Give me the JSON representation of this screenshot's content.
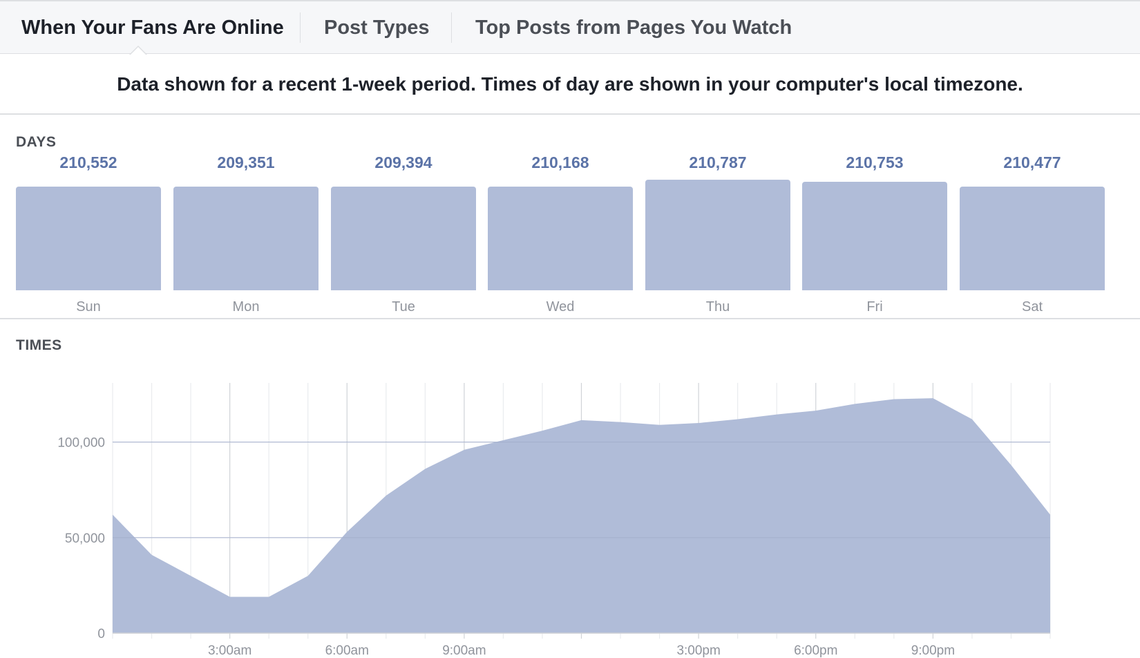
{
  "tabs": [
    {
      "label": "When Your Fans Are Online",
      "active": true
    },
    {
      "label": "Post Types",
      "active": false
    },
    {
      "label": "Top Posts from Pages You Watch",
      "active": false
    }
  ],
  "notice": "Data shown for a recent 1-week period. Times of day are shown in your computer's local timezone.",
  "days_section": {
    "label": "DAYS",
    "days": [
      {
        "name": "Sun",
        "value": "210,552"
      },
      {
        "name": "Mon",
        "value": "209,351"
      },
      {
        "name": "Tue",
        "value": "209,394"
      },
      {
        "name": "Wed",
        "value": "210,168"
      },
      {
        "name": "Thu",
        "value": "210,787"
      },
      {
        "name": "Fri",
        "value": "210,753"
      },
      {
        "name": "Sat",
        "value": "210,477"
      }
    ]
  },
  "times_section": {
    "label": "TIMES"
  },
  "colors": {
    "bar_fill": "#b0bcd8",
    "value_text": "#5b73a7",
    "axis_text": "#90949c"
  },
  "chart_data": [
    {
      "type": "bar",
      "categories": [
        "Sun",
        "Mon",
        "Tue",
        "Wed",
        "Thu",
        "Fri",
        "Sat"
      ],
      "values": [
        210552,
        209351,
        209394,
        210168,
        210787,
        210753,
        210477
      ]
    },
    {
      "type": "area",
      "x": [
        "12:00am",
        "1:00am",
        "2:00am",
        "3:00am",
        "4:00am",
        "5:00am",
        "6:00am",
        "7:00am",
        "8:00am",
        "9:00am",
        "10:00am",
        "11:00am",
        "12:00pm",
        "1:00pm",
        "2:00pm",
        "3:00pm",
        "4:00pm",
        "5:00pm",
        "6:00pm",
        "7:00pm",
        "8:00pm",
        "9:00pm",
        "10:00pm",
        "11:00pm",
        "12:00am"
      ],
      "values": [
        62000,
        41000,
        30000,
        19000,
        19000,
        30000,
        53000,
        72000,
        86000,
        96000,
        101000,
        106000,
        111500,
        110500,
        109000,
        110000,
        112000,
        114500,
        116500,
        120000,
        122500,
        123000,
        112000,
        88000,
        62000
      ],
      "xticks": [
        "3:00am",
        "6:00am",
        "9:00am",
        "3:00pm",
        "6:00pm",
        "9:00pm"
      ],
      "xtick_positions": [
        3,
        6,
        9,
        15,
        18,
        21
      ],
      "yticks": [
        "0",
        "50,000",
        "100,000"
      ],
      "ytick_values": [
        0,
        50000,
        100000
      ],
      "ylim": [
        0,
        131000
      ],
      "grid": true
    }
  ]
}
